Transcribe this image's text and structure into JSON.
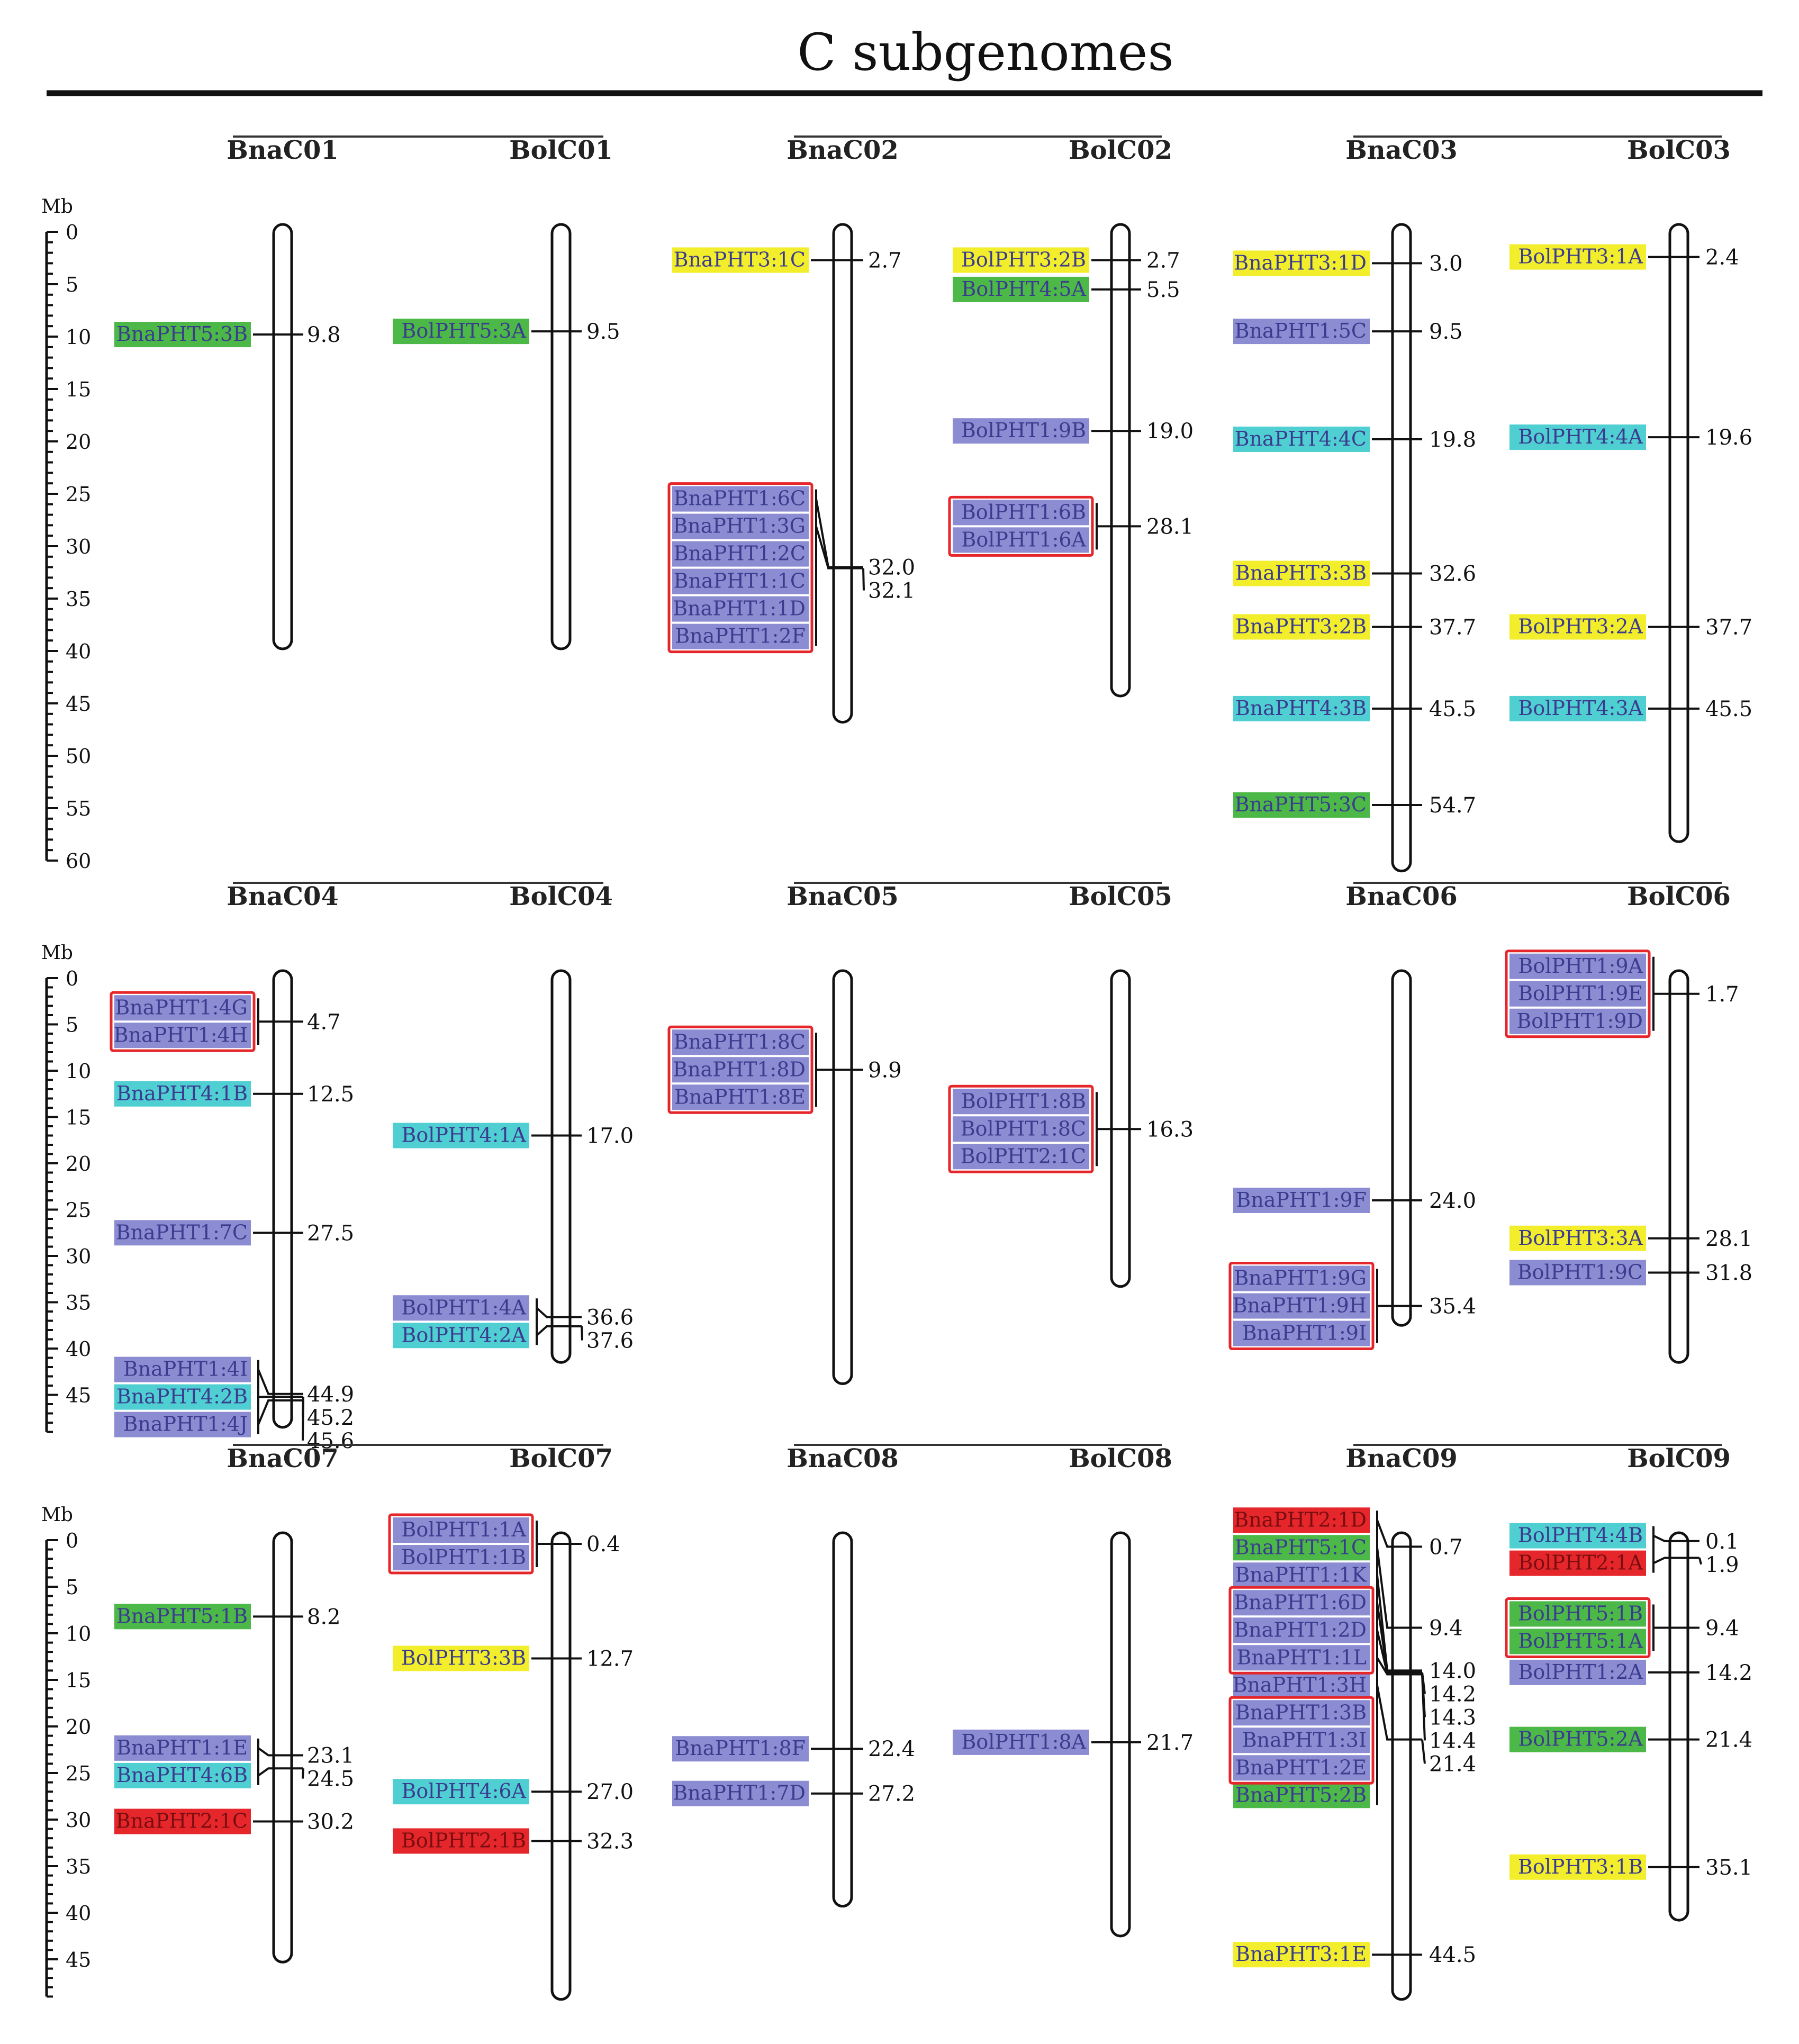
{
  "title": "C subgenomes",
  "colors": {
    "yellow": "#f3ee2c",
    "green": "#4cb848",
    "purple": "#8c8cd2",
    "cyan": "#4fcfd2",
    "red": "#e5262a",
    "box": "#e5262a",
    "label_text": "#3b3b8f"
  },
  "scales": [
    {
      "unit": "Mb",
      "max": 60,
      "ticks": [
        "0",
        "5",
        "10",
        "15",
        "20",
        "25",
        "30",
        "35",
        "40",
        "45",
        "50",
        "55",
        "60"
      ]
    },
    {
      "unit": "Mb",
      "max": 49,
      "ticks": [
        "0",
        "5",
        "10",
        "15",
        "20",
        "25",
        "30",
        "35",
        "40",
        "45"
      ]
    },
    {
      "unit": "Mb",
      "max": 49,
      "ticks": [
        "0",
        "5",
        "10",
        "15",
        "20",
        "25",
        "30",
        "35",
        "40",
        "45"
      ]
    }
  ],
  "pairs": [
    {
      "chromosomes": [
        {
          "name": "BnaC01",
          "length": 39.8,
          "genes": [
            {
              "positions": [
                "9.8"
              ],
              "labels": [
                {
                  "text": "BnaPHT5:3B",
                  "color": "green"
                }
              ]
            }
          ]
        },
        {
          "name": "BolC01",
          "length": 39.8,
          "genes": [
            {
              "positions": [
                "9.5"
              ],
              "labels": [
                {
                  "text": "BolPHT5:3A",
                  "color": "green"
                }
              ]
            }
          ]
        }
      ]
    },
    {
      "chromosomes": [
        {
          "name": "BnaC02",
          "length": 46.8,
          "genes": [
            {
              "positions": [
                "2.7"
              ],
              "labels": [
                {
                  "text": "BnaPHT3:1C",
                  "color": "yellow"
                }
              ]
            },
            {
              "positions": [
                "32.0",
                "32.1"
              ],
              "box": true,
              "labels": [
                {
                  "text": "BnaPHT1:6C",
                  "color": "purple"
                },
                {
                  "text": "BnaPHT1:3G",
                  "color": "purple"
                },
                {
                  "text": "BnaPHT1:2C",
                  "color": "purple"
                },
                {
                  "text": "BnaPHT1:1C",
                  "color": "purple"
                },
                {
                  "text": "BnaPHT1:1D",
                  "color": "purple"
                },
                {
                  "text": "BnaPHT1:2F",
                  "color": "purple"
                }
              ]
            }
          ]
        },
        {
          "name": "BolC02",
          "length": 44.3,
          "genes": [
            {
              "positions": [
                "2.7"
              ],
              "labels": [
                {
                  "text": "BolPHT3:2B",
                  "color": "yellow"
                }
              ]
            },
            {
              "positions": [
                "5.5"
              ],
              "labels": [
                {
                  "text": "BolPHT4:5A",
                  "color": "green"
                }
              ]
            },
            {
              "positions": [
                "19.0"
              ],
              "labels": [
                {
                  "text": "BolPHT1:9B",
                  "color": "purple"
                }
              ]
            },
            {
              "positions": [
                "28.1"
              ],
              "box": true,
              "labels": [
                {
                  "text": "BolPHT1:6B",
                  "color": "purple"
                },
                {
                  "text": "BolPHT1:6A",
                  "color": "purple"
                }
              ]
            }
          ]
        }
      ]
    },
    {
      "chromosomes": [
        {
          "name": "BnaC03",
          "length": 61.0,
          "genes": [
            {
              "positions": [
                "3.0"
              ],
              "labels": [
                {
                  "text": "BnaPHT3:1D",
                  "color": "yellow"
                }
              ]
            },
            {
              "positions": [
                "9.5"
              ],
              "labels": [
                {
                  "text": "BnaPHT1:5C",
                  "color": "purple"
                }
              ]
            },
            {
              "positions": [
                "19.8"
              ],
              "labels": [
                {
                  "text": "BnaPHT4:4C",
                  "color": "cyan"
                }
              ]
            },
            {
              "positions": [
                "32.6"
              ],
              "labels": [
                {
                  "text": "BnaPHT3:3B",
                  "color": "yellow"
                }
              ]
            },
            {
              "positions": [
                "37.7"
              ],
              "labels": [
                {
                  "text": "BnaPHT3:2B",
                  "color": "yellow"
                }
              ]
            },
            {
              "positions": [
                "45.5"
              ],
              "labels": [
                {
                  "text": "BnaPHT4:3B",
                  "color": "cyan"
                }
              ]
            },
            {
              "positions": [
                "54.7"
              ],
              "labels": [
                {
                  "text": "BnaPHT5:3C",
                  "color": "green"
                }
              ]
            }
          ]
        },
        {
          "name": "BolC03",
          "length": 58.2,
          "genes": [
            {
              "positions": [
                "2.4"
              ],
              "labels": [
                {
                  "text": "BolPHT3:1A",
                  "color": "yellow"
                }
              ]
            },
            {
              "positions": [
                "19.6"
              ],
              "labels": [
                {
                  "text": "BolPHT4:4A",
                  "color": "cyan"
                }
              ]
            },
            {
              "positions": [
                "37.7"
              ],
              "labels": [
                {
                  "text": "BolPHT3:2A",
                  "color": "yellow"
                }
              ]
            },
            {
              "positions": [
                "45.5"
              ],
              "labels": [
                {
                  "text": "BolPHT4:3A",
                  "color": "cyan"
                }
              ]
            }
          ]
        }
      ]
    },
    {
      "chromosomes": [
        {
          "name": "BnaC04",
          "length": 48.5,
          "genes": [
            {
              "positions": [
                "4.7"
              ],
              "box": true,
              "labels": [
                {
                  "text": "BnaPHT1:4G",
                  "color": "purple"
                },
                {
                  "text": "BnaPHT1:4H",
                  "color": "purple"
                }
              ]
            },
            {
              "positions": [
                "12.5"
              ],
              "labels": [
                {
                  "text": "BnaPHT4:1B",
                  "color": "cyan"
                }
              ]
            },
            {
              "positions": [
                "27.5"
              ],
              "labels": [
                {
                  "text": "BnaPHT1:7C",
                  "color": "purple"
                }
              ]
            },
            {
              "positions": [
                "44.9",
                "45.2",
                "45.6"
              ],
              "labels": [
                {
                  "text": "BnaPHT1:4I",
                  "color": "purple"
                },
                {
                  "text": "BnaPHT4:2B",
                  "color": "cyan"
                },
                {
                  "text": "BnaPHT1:4J",
                  "color": "purple"
                }
              ]
            }
          ]
        },
        {
          "name": "BolC04",
          "length": 41.5,
          "genes": [
            {
              "positions": [
                "17.0"
              ],
              "labels": [
                {
                  "text": "BolPHT4:1A",
                  "color": "cyan"
                }
              ]
            },
            {
              "positions": [
                "36.6",
                "37.6"
              ],
              "labels": [
                {
                  "text": "BolPHT1:4A",
                  "color": "purple"
                },
                {
                  "text": "BolPHT4:2A",
                  "color": "cyan"
                }
              ]
            }
          ]
        }
      ]
    },
    {
      "chromosomes": [
        {
          "name": "BnaC05",
          "length": 43.8,
          "genes": [
            {
              "positions": [
                "9.9"
              ],
              "box": true,
              "labels": [
                {
                  "text": "BnaPHT1:8C",
                  "color": "purple"
                },
                {
                  "text": "BnaPHT1:8D",
                  "color": "purple"
                },
                {
                  "text": "BnaPHT1:8E",
                  "color": "purple"
                }
              ]
            }
          ]
        },
        {
          "name": "BolC05",
          "length": 33.3,
          "genes": [
            {
              "positions": [
                "16.3"
              ],
              "box": true,
              "labels": [
                {
                  "text": "BolPHT1:8B",
                  "color": "purple"
                },
                {
                  "text": "BolPHT1:8C",
                  "color": "purple"
                },
                {
                  "text": "BolPHT2:1C",
                  "color": "purple"
                }
              ]
            }
          ]
        }
      ]
    },
    {
      "chromosomes": [
        {
          "name": "BnaC06",
          "length": 37.5,
          "genes": [
            {
              "positions": [
                "24.0"
              ],
              "labels": [
                {
                  "text": "BnaPHT1:9F",
                  "color": "purple"
                }
              ]
            },
            {
              "positions": [
                "35.4"
              ],
              "box": true,
              "labels": [
                {
                  "text": "BnaPHT1:9G",
                  "color": "purple"
                },
                {
                  "text": "BnaPHT1:9H",
                  "color": "purple"
                },
                {
                  "text": "BnaPHT1:9I",
                  "color": "purple"
                }
              ]
            }
          ]
        },
        {
          "name": "BolC06",
          "length": 41.5,
          "genes": [
            {
              "positions": [
                "1.7"
              ],
              "box": true,
              "labels": [
                {
                  "text": "BolPHT1:9A",
                  "color": "purple"
                },
                {
                  "text": "BolPHT1:9E",
                  "color": "purple"
                },
                {
                  "text": "BolPHT1:9D",
                  "color": "purple"
                }
              ]
            },
            {
              "positions": [
                "28.1"
              ],
              "labels": [
                {
                  "text": "BolPHT3:3A",
                  "color": "yellow"
                }
              ]
            },
            {
              "positions": [
                "31.8"
              ],
              "labels": [
                {
                  "text": "BolPHT1:9C",
                  "color": "purple"
                }
              ]
            }
          ]
        }
      ]
    },
    {
      "chromosomes": [
        {
          "name": "BnaC07",
          "length": 45.3,
          "genes": [
            {
              "positions": [
                "8.2"
              ],
              "labels": [
                {
                  "text": "BnaPHT5:1B",
                  "color": "green"
                }
              ]
            },
            {
              "positions": [
                "23.1",
                "24.5"
              ],
              "labels": [
                {
                  "text": "BnaPHT1:1E",
                  "color": "purple"
                },
                {
                  "text": "BnaPHT4:6B",
                  "color": "cyan"
                }
              ]
            },
            {
              "positions": [
                "30.2"
              ],
              "labels": [
                {
                  "text": "BnaPHT2:1C",
                  "color": "red"
                }
              ]
            }
          ]
        },
        {
          "name": "BolC07",
          "length": 49.3,
          "genes": [
            {
              "positions": [
                "0.4"
              ],
              "box": true,
              "labels": [
                {
                  "text": "BolPHT1:1A",
                  "color": "purple"
                },
                {
                  "text": "BolPHT1:1B",
                  "color": "purple"
                }
              ]
            },
            {
              "positions": [
                "12.7"
              ],
              "labels": [
                {
                  "text": "BolPHT3:3B",
                  "color": "yellow"
                }
              ]
            },
            {
              "positions": [
                "27.0"
              ],
              "labels": [
                {
                  "text": "BolPHT4:6A",
                  "color": "cyan"
                }
              ]
            },
            {
              "positions": [
                "32.3"
              ],
              "labels": [
                {
                  "text": "BolPHT2:1B",
                  "color": "red"
                }
              ]
            }
          ]
        }
      ]
    },
    {
      "chromosomes": [
        {
          "name": "BnaC08",
          "length": 39.3,
          "genes": [
            {
              "positions": [
                "22.4"
              ],
              "labels": [
                {
                  "text": "BnaPHT1:8F",
                  "color": "purple"
                }
              ]
            },
            {
              "positions": [
                "27.2"
              ],
              "labels": [
                {
                  "text": "BnaPHT1:7D",
                  "color": "purple"
                }
              ]
            }
          ]
        },
        {
          "name": "BolC08",
          "length": 42.5,
          "genes": [
            {
              "positions": [
                "21.7"
              ],
              "labels": [
                {
                  "text": "BolPHT1:8A",
                  "color": "purple"
                }
              ]
            }
          ]
        }
      ]
    },
    {
      "chromosomes": [
        {
          "name": "BnaC09",
          "length": 49.3,
          "genes": [
            {
              "positions": [
                "0.7",
                "9.4",
                "14.0",
                "14.2",
                "14.3",
                "14.4",
                "21.4"
              ],
              "labels": [
                {
                  "text": "BnaPHT2:1D",
                  "color": "red"
                },
                {
                  "text": "BnaPHT5:1C",
                  "color": "green"
                },
                {
                  "text": "BnaPHT1:1K",
                  "color": "purple"
                },
                {
                  "text": "BnaPHT1:6D",
                  "color": "purple"
                },
                {
                  "text": "BnaPHT1:2D",
                  "color": "purple"
                },
                {
                  "text": "BnaPHT1:1L",
                  "color": "purple"
                },
                {
                  "text": "BnaPHT1:3H",
                  "color": "purple"
                },
                {
                  "text": "BnaPHT1:3B",
                  "color": "purple"
                },
                {
                  "text": "BnaPHT1:3I",
                  "color": "purple"
                },
                {
                  "text": "BnaPHT1:2E",
                  "color": "purple"
                },
                {
                  "text": "BnaPHT5:2B",
                  "color": "green"
                }
              ],
              "boxes": [
                [
                  3,
                  5
                ],
                [
                  7,
                  9
                ]
              ]
            },
            {
              "positions": [
                "44.5"
              ],
              "labels": [
                {
                  "text": "BnaPHT3:1E",
                  "color": "yellow"
                }
              ]
            }
          ]
        },
        {
          "name": "BolC09",
          "length": 40.8,
          "genes": [
            {
              "positions": [
                "0.1",
                "1.9"
              ],
              "labels": [
                {
                  "text": "BolPHT4:4B",
                  "color": "cyan"
                },
                {
                  "text": "BolPHT2:1A",
                  "color": "red"
                }
              ]
            },
            {
              "positions": [
                "9.4"
              ],
              "box": true,
              "labels": [
                {
                  "text": "BolPHT5:1B",
                  "color": "green"
                },
                {
                  "text": "BolPHT5:1A",
                  "color": "green"
                }
              ]
            },
            {
              "positions": [
                "14.2"
              ],
              "labels": [
                {
                  "text": "BolPHT1:2A",
                  "color": "purple"
                }
              ]
            },
            {
              "positions": [
                "21.4"
              ],
              "labels": [
                {
                  "text": "BolPHT5:2A",
                  "color": "green"
                }
              ]
            },
            {
              "positions": [
                "35.1"
              ],
              "labels": [
                {
                  "text": "BolPHT3:1B",
                  "color": "yellow"
                }
              ]
            }
          ]
        }
      ]
    }
  ]
}
